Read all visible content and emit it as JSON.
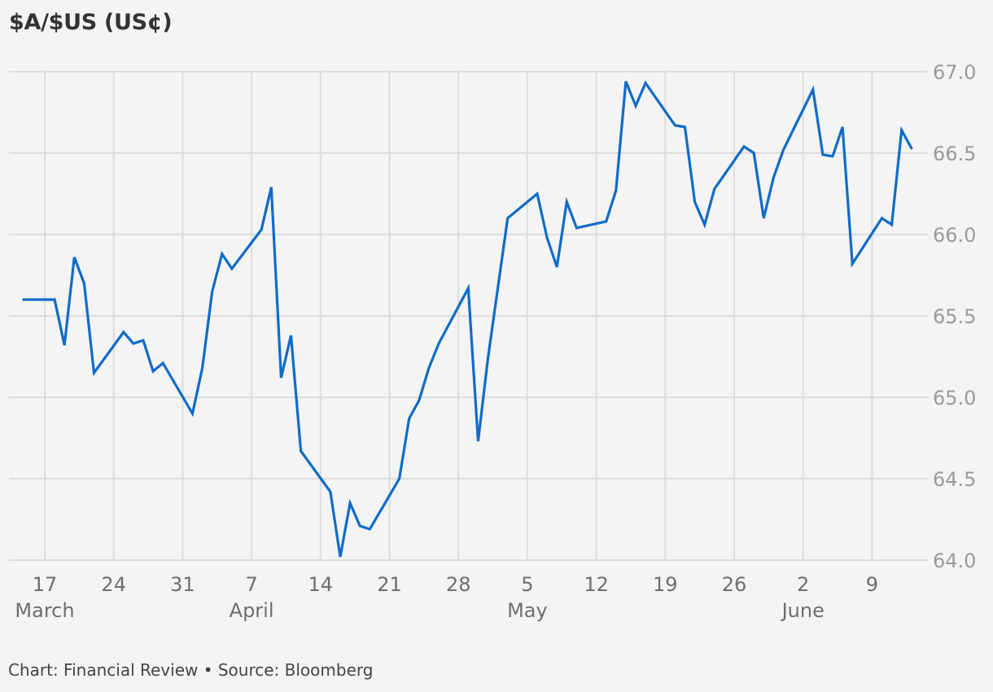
{
  "title": "$A/$US (US¢)",
  "footer": "Chart: Financial Review • Source: Bloomberg",
  "colors": {
    "background": "#f4f4f4",
    "grid": "#dddddd",
    "line": "#106bc8",
    "title": "#333333",
    "ytick": "#9a9a9a",
    "xtick": "#6e6e6e"
  },
  "chart_data": {
    "type": "line",
    "title": "$A/$US (US¢)",
    "xlabel": "",
    "ylabel": "US¢",
    "ylim": [
      64.0,
      67.0
    ],
    "yticks": [
      "64.0",
      "64.5",
      "65.0",
      "65.5",
      "66.0",
      "66.5",
      "67.0"
    ],
    "grid": true,
    "legend": null,
    "x_tick_labels": [
      {
        "day": "17",
        "month": "March"
      },
      {
        "day": "24",
        "month": ""
      },
      {
        "day": "31",
        "month": ""
      },
      {
        "day": "7",
        "month": "April"
      },
      {
        "day": "14",
        "month": ""
      },
      {
        "day": "21",
        "month": ""
      },
      {
        "day": "28",
        "month": ""
      },
      {
        "day": "5",
        "month": "May"
      },
      {
        "day": "12",
        "month": ""
      },
      {
        "day": "19",
        "month": ""
      },
      {
        "day": "26",
        "month": ""
      },
      {
        "day": "2",
        "month": "June"
      },
      {
        "day": "9",
        "month": ""
      }
    ],
    "series": [
      {
        "name": "$A/$US",
        "x": [
          "Mar 15",
          "Mar 18",
          "Mar 19",
          "Mar 20",
          "Mar 21",
          "Mar 22",
          "Mar 25",
          "Mar 26",
          "Mar 27",
          "Mar 28",
          "Mar 29",
          "Apr 1",
          "Apr 2",
          "Apr 3",
          "Apr 4",
          "Apr 5",
          "Apr 8",
          "Apr 9",
          "Apr 10",
          "Apr 11",
          "Apr 12",
          "Apr 15",
          "Apr 16",
          "Apr 17",
          "Apr 18",
          "Apr 19",
          "Apr 22",
          "Apr 23",
          "Apr 24",
          "Apr 25",
          "Apr 26",
          "Apr 29",
          "Apr 30",
          "May 1",
          "May 3",
          "May 6",
          "May 7",
          "May 8",
          "May 9",
          "May 10",
          "May 13",
          "May 14",
          "May 15",
          "May 16",
          "May 17",
          "May 20",
          "May 21",
          "May 22",
          "May 23",
          "May 24",
          "May 27",
          "May 28",
          "May 29",
          "May 30",
          "May 31",
          "Jun 3",
          "Jun 4",
          "Jun 5",
          "Jun 6",
          "Jun 7",
          "Jun 10",
          "Jun 11",
          "Jun 12",
          "Jun 13"
        ],
        "day_index": [
          -2.15,
          1,
          2,
          3,
          4,
          5,
          8,
          9,
          10,
          11,
          12,
          15,
          16,
          17,
          18,
          19,
          22,
          23,
          24,
          25,
          26,
          29,
          30,
          31,
          32,
          33,
          36,
          37,
          38,
          39,
          40,
          43,
          44,
          45,
          47,
          50,
          51,
          52,
          53,
          54,
          57,
          58,
          59,
          60,
          61,
          64,
          65,
          66,
          67,
          68,
          71,
          72,
          73,
          74,
          75,
          78,
          79,
          80,
          81,
          82,
          85,
          86,
          87,
          88
        ],
        "values": [
          65.6,
          65.6,
          65.32,
          65.86,
          65.7,
          65.15,
          65.4,
          65.33,
          65.35,
          65.16,
          65.21,
          64.9,
          65.18,
          65.65,
          65.88,
          65.79,
          66.03,
          66.29,
          65.12,
          65.38,
          64.67,
          64.42,
          64.02,
          64.35,
          64.21,
          64.19,
          64.5,
          64.87,
          64.98,
          65.18,
          65.33,
          65.67,
          64.73,
          65.24,
          66.1,
          66.25,
          65.98,
          65.8,
          66.2,
          66.04,
          66.08,
          66.27,
          66.94,
          66.79,
          66.93,
          66.67,
          66.66,
          66.2,
          66.06,
          66.28,
          66.54,
          66.5,
          66.1,
          66.35,
          66.52,
          66.89,
          66.49,
          66.48,
          66.66,
          65.82,
          66.1,
          66.06,
          66.64,
          66.53
        ]
      }
    ]
  }
}
